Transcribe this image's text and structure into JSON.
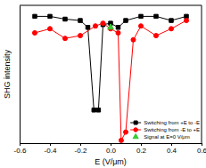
{
  "chart_data": {
    "type": "line",
    "x_label": "E (V/μm)",
    "y_label": "SHG intensity",
    "xlim": [
      -0.6,
      0.6
    ],
    "xticks": [
      -0.6,
      -0.4,
      -0.2,
      {
        "value": 0,
        "label": "0.0"
      },
      0.2,
      0.4,
      0.6
    ],
    "ylim": [
      0,
      1
    ],
    "grid": false,
    "tick_labels": "x",
    "legend": "lower right",
    "series": [
      {
        "name": "Switching from +E to -E",
        "color": "#000000",
        "marker": "square",
        "line_style": "solid",
        "x": [
          0.5,
          0.4,
          0.3,
          0.2,
          0.1,
          0.05,
          0.0,
          -0.05,
          -0.08,
          -0.11,
          -0.15,
          -0.2,
          -0.3,
          -0.4,
          -0.5
        ],
        "values": [
          0.92,
          0.89,
          0.92,
          0.92,
          0.89,
          0.84,
          0.87,
          0.86,
          0.24,
          0.24,
          0.84,
          0.89,
          0.9,
          0.92,
          0.92
        ]
      },
      {
        "name": "Switching from -E to +E",
        "color": "#ff0000",
        "marker": "circle",
        "line_style": "solid",
        "x": [
          -0.5,
          -0.4,
          -0.3,
          -0.2,
          -0.1,
          -0.05,
          0.0,
          0.05,
          0.07,
          0.1,
          0.15,
          0.2,
          0.3,
          0.4,
          0.5
        ],
        "values": [
          0.8,
          0.83,
          0.76,
          0.78,
          0.85,
          0.87,
          0.83,
          0.8,
          0.02,
          0.08,
          0.75,
          0.85,
          0.78,
          0.83,
          0.89
        ]
      },
      {
        "name": "Signal at E=0 V/μm",
        "color": "#33cc33",
        "marker": "triangle",
        "line_style": "none",
        "x": [
          0.0
        ],
        "values": [
          0.84
        ]
      }
    ]
  }
}
